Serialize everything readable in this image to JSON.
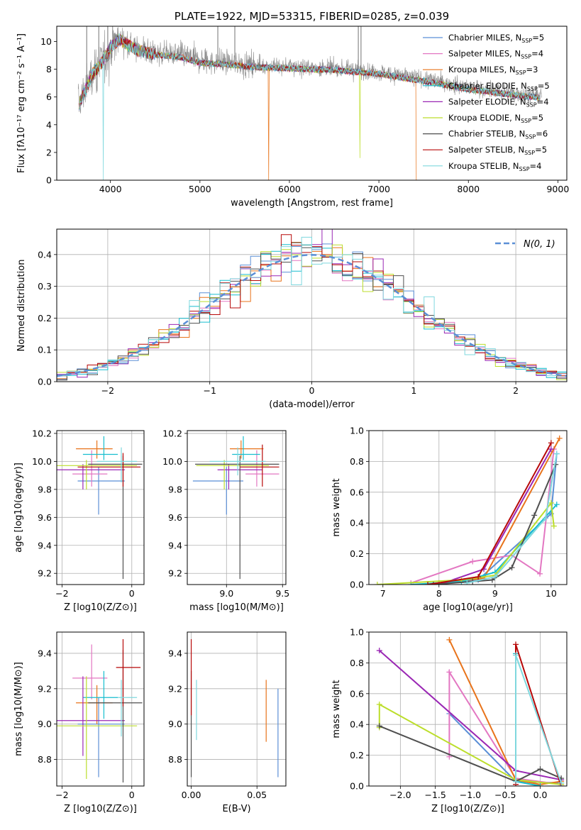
{
  "palette": [
    "#5b8fd6",
    "#e377c2",
    "#e8731a",
    "#17becf",
    "#9a27b4",
    "#bcde2b",
    "#4f4f4f",
    "#b70808",
    "#7fd8de"
  ],
  "chart_data": [
    {
      "id": "spectrum",
      "type": "line",
      "title": "PLATE=1922, MJD=53315, FIBERID=0285, z=0.039",
      "xlabel": "wavelength [Angstrom, rest frame]",
      "ylabel": "Flux [fλ10⁻¹⁷ erg cm⁻² s⁻¹ A⁻¹]",
      "xlim": [
        3400,
        9100
      ],
      "ylim": [
        0,
        11.1
      ],
      "xticks": [
        4000,
        5000,
        6000,
        7000,
        8000,
        9000
      ],
      "yticks": [
        0,
        2,
        4,
        6,
        8,
        10
      ],
      "grid": false,
      "legend_position": "upper right",
      "data_color": "#8a8a8a",
      "data_envelope": {
        "x": [
          3650,
          3800,
          3900,
          4000,
          4100,
          4300,
          4500,
          4800,
          5000,
          5300,
          5600,
          6000,
          6500,
          7000,
          7500,
          8000,
          8500,
          8800
        ],
        "y": [
          5.6,
          7.8,
          8.6,
          9.7,
          10.3,
          9.5,
          9.2,
          9.0,
          8.6,
          8.5,
          8.3,
          8.2,
          8.1,
          7.8,
          7.3,
          6.7,
          6.3,
          6.1
        ]
      },
      "series": [
        {
          "name": "Chabrier MILES, N_SSP=5",
          "label_main": "Chabrier MILES, N",
          "label_sub": "SSP",
          "label_tail": "=5"
        },
        {
          "name": "Salpeter MILES, N_SSP=4",
          "label_main": "Salpeter MILES, N",
          "label_sub": "SSP",
          "label_tail": "=4"
        },
        {
          "name": "Kroupa MILES, N_SSP=3",
          "label_main": "Kroupa MILES, N",
          "label_sub": "SSP",
          "label_tail": "=3"
        },
        {
          "name": "Chabrier ELODIE, N_SSP=5",
          "label_main": "Chabrier ELODIE, N",
          "label_sub": "SSP",
          "label_tail": "=5"
        },
        {
          "name": "Salpeter ELODIE, N_SSP=4",
          "label_main": "Salpeter ELODIE, N",
          "label_sub": "SSP",
          "label_tail": "=4"
        },
        {
          "name": "Kroupa ELODIE, N_SSP=5",
          "label_main": "Kroupa ELODIE, N",
          "label_sub": "SSP",
          "label_tail": "=5"
        },
        {
          "name": "Chabrier STELIB, N_SSP=6",
          "label_main": "Chabrier STELIB, N",
          "label_sub": "SSP",
          "label_tail": "=6"
        },
        {
          "name": "Salpeter STELIB, N_SSP=5",
          "label_main": "Salpeter STELIB, N",
          "label_sub": "SSP",
          "label_tail": "=5"
        },
        {
          "name": "Kroupa STELIB, N_SSP=4",
          "label_main": "Kroupa STELIB, N",
          "label_sub": "SSP",
          "label_tail": "=4"
        }
      ]
    },
    {
      "id": "residuals",
      "type": "line",
      "xlabel": "(data-model)/error",
      "ylabel": "Normed distribution",
      "xlim": [
        -2.5,
        2.5
      ],
      "ylim": [
        0,
        0.48
      ],
      "xticks": [
        -2,
        -1,
        0,
        1,
        2
      ],
      "yticks": [
        0.0,
        0.1,
        0.2,
        0.3,
        0.4
      ],
      "grid": true,
      "legend_position": "upper right",
      "normal_curve": {
        "name": "N(0,1)",
        "mean": 0,
        "sigma": 1,
        "color": "#5b8fd6",
        "dashed": true
      },
      "bin_width": 0.1,
      "histogram_note": "nine step histograms, one per model, scattered around the normal curve"
    },
    {
      "id": "age_vs_Z",
      "type": "scatter",
      "xlabel": "Z [log10(Z/Z⊙)]",
      "ylabel": "age  [log10(age/yr)]",
      "xlim": [
        -2.15,
        0.35
      ],
      "ylim": [
        9.12,
        10.22
      ],
      "xticks": [
        -2,
        0
      ],
      "yticks": [
        9.2,
        9.4,
        9.6,
        9.8,
        10.0,
        10.2
      ],
      "grid": true,
      "crosses": [
        {
          "x": -0.95,
          "y": 9.86,
          "xerr": [
            0.6,
            0.75
          ],
          "yerr": [
            0.24,
            0.1
          ]
        },
        {
          "x": -1.15,
          "y": 9.91,
          "xerr": [
            0.55,
            0.45
          ],
          "yerr": [
            0.09,
            0.17
          ]
        },
        {
          "x": -1.0,
          "y": 10.09,
          "xerr": [
            0.6,
            0.45
          ],
          "yerr": [
            0.07,
            0.06
          ]
        },
        {
          "x": -0.8,
          "y": 10.05,
          "xerr": [
            0.6,
            0.4
          ],
          "yerr": [
            0.04,
            0.13
          ]
        },
        {
          "x": -1.4,
          "y": 9.94,
          "xerr": [
            0.75,
            1.2
          ],
          "yerr": [
            0.14,
            0.04
          ]
        },
        {
          "x": -1.3,
          "y": 9.97,
          "xerr": [
            0.85,
            1.45
          ],
          "yerr": [
            0.17,
            0.04
          ]
        },
        {
          "x": -0.25,
          "y": 9.98,
          "xerr": [
            1.0,
            0.55
          ],
          "yerr": [
            0.82,
            0.06
          ]
        },
        {
          "x": -0.25,
          "y": 9.96,
          "xerr": [
            1.3,
            0.5
          ],
          "yerr": [
            0.14,
            0.1
          ]
        },
        {
          "x": -0.3,
          "y": 10.0,
          "xerr": [
            0.7,
            0.45
          ],
          "yerr": [
            0.15,
            0.1
          ]
        }
      ]
    },
    {
      "id": "age_vs_mass",
      "type": "scatter",
      "xlabel": "mass [log10(M/M⊙)]",
      "ylabel": "",
      "xlim": [
        8.65,
        9.53
      ],
      "ylim": [
        9.12,
        10.22
      ],
      "xticks": [
        9.0,
        9.5
      ],
      "yticks": [
        9.2,
        9.4,
        9.6,
        9.8,
        10.0,
        10.2
      ],
      "grid": true,
      "crosses": [
        {
          "x": 9.0,
          "y": 9.86,
          "xerr": [
            0.3,
            0.15
          ],
          "yerr": [
            0.24,
            0.1
          ]
        },
        {
          "x": 9.27,
          "y": 9.91,
          "xerr": [
            0.1,
            0.2
          ],
          "yerr": [
            0.09,
            0.17
          ]
        },
        {
          "x": 9.13,
          "y": 10.09,
          "xerr": [
            0.1,
            0.2
          ],
          "yerr": [
            0.07,
            0.06
          ]
        },
        {
          "x": 9.15,
          "y": 10.05,
          "xerr": [
            0.1,
            0.15
          ],
          "yerr": [
            0.04,
            0.13
          ]
        },
        {
          "x": 9.02,
          "y": 9.94,
          "xerr": [
            0.1,
            0.3
          ],
          "yerr": [
            0.14,
            0.04
          ]
        },
        {
          "x": 8.98,
          "y": 9.97,
          "xerr": [
            0.25,
            0.4
          ],
          "yerr": [
            0.17,
            0.04
          ]
        },
        {
          "x": 9.12,
          "y": 9.98,
          "xerr": [
            0.4,
            0.35
          ],
          "yerr": [
            0.82,
            0.06
          ]
        },
        {
          "x": 9.32,
          "y": 9.96,
          "xerr": [
            0.2,
            0.15
          ],
          "yerr": [
            0.14,
            0.16
          ]
        },
        {
          "x": 9.1,
          "y": 10.0,
          "xerr": [
            0.25,
            0.25
          ],
          "yerr": [
            0.1,
            0.1
          ]
        }
      ]
    },
    {
      "id": "massweight_vs_age",
      "type": "line",
      "xlabel": "age  [log10(age/yr)]",
      "ylabel": "mass weight",
      "xlim": [
        6.75,
        10.28
      ],
      "ylim": [
        0,
        1.0
      ],
      "xticks": [
        7,
        8,
        9,
        10
      ],
      "yticks": [
        0.0,
        0.2,
        0.4,
        0.6,
        0.8,
        1.0
      ],
      "grid": true,
      "series": [
        {
          "x": [
            7.9,
            8.7,
            10.0,
            10.1
          ],
          "y": [
            0.0,
            0.03,
            0.46,
            0.85
          ]
        },
        {
          "x": [
            7.5,
            8.6,
            9.3,
            9.8,
            10.05
          ],
          "y": [
            0.01,
            0.15,
            0.19,
            0.07,
            0.88
          ]
        },
        {
          "x": [
            8.0,
            8.8,
            10.15
          ],
          "y": [
            0.01,
            0.04,
            0.95
          ]
        },
        {
          "x": [
            7.5,
            8.4,
            9.0,
            10.1
          ],
          "y": [
            0.0,
            0.02,
            0.08,
            0.52
          ]
        },
        {
          "x": [
            8.0,
            8.8,
            10.0
          ],
          "y": [
            0.0,
            0.1,
            0.88
          ]
        },
        {
          "x": [
            6.9,
            8.4,
            9.0,
            10.0,
            10.05
          ],
          "y": [
            0.0,
            0.03,
            0.06,
            0.53,
            0.38
          ]
        },
        {
          "x": [
            7.9,
            8.6,
            8.95,
            9.3,
            9.7,
            10.08
          ],
          "y": [
            0.0,
            0.02,
            0.03,
            0.11,
            0.45,
            0.78
          ]
        },
        {
          "x": [
            7.8,
            8.7,
            10.0
          ],
          "y": [
            0.0,
            0.05,
            0.92
          ]
        },
        {
          "x": [
            8.5,
            9.0,
            9.9,
            10.1
          ],
          "y": [
            0.01,
            0.05,
            0.43,
            0.85
          ]
        }
      ]
    },
    {
      "id": "mass_vs_Z",
      "type": "scatter",
      "xlabel": "Z [log10(Z/Z⊙)]",
      "ylabel": "mass [log10(M/M⊙)]",
      "xlim": [
        -2.15,
        0.35
      ],
      "ylim": [
        8.65,
        9.52
      ],
      "xticks": [
        -2,
        0
      ],
      "yticks": [
        8.8,
        9.0,
        9.2,
        9.4
      ],
      "grid": true,
      "crosses": [
        {
          "x": -0.95,
          "y": 9.0,
          "xerr": [
            0.6,
            0.75
          ],
          "yerr": [
            0.3,
            0.15
          ]
        },
        {
          "x": -1.15,
          "y": 9.26,
          "xerr": [
            0.55,
            0.45
          ],
          "yerr": [
            0.12,
            0.19
          ]
        },
        {
          "x": -1.0,
          "y": 9.12,
          "xerr": [
            0.6,
            0.45
          ],
          "yerr": [
            0.12,
            0.1
          ]
        },
        {
          "x": -0.8,
          "y": 9.15,
          "xerr": [
            0.6,
            0.4
          ],
          "yerr": [
            0.12,
            0.15
          ]
        },
        {
          "x": -1.4,
          "y": 9.02,
          "xerr": [
            0.75,
            1.2
          ],
          "yerr": [
            0.2,
            0.25
          ]
        },
        {
          "x": -1.3,
          "y": 8.99,
          "xerr": [
            0.85,
            1.45
          ],
          "yerr": [
            0.3,
            0.28
          ]
        },
        {
          "x": -0.25,
          "y": 9.12,
          "xerr": [
            1.0,
            0.55
          ],
          "yerr": [
            0.45,
            0.3
          ]
        },
        {
          "x": -0.25,
          "y": 9.32,
          "xerr": [
            0.2,
            0.5
          ],
          "yerr": [
            0.22,
            0.16
          ]
        },
        {
          "x": -0.3,
          "y": 9.15,
          "xerr": [
            0.1,
            0.45
          ],
          "yerr": [
            0.22,
            0.1
          ]
        }
      ]
    },
    {
      "id": "mass_vs_EBV",
      "type": "scatter",
      "xlabel": "E(B-V)",
      "ylabel": "",
      "xlim": [
        -0.003,
        0.072
      ],
      "ylim": [
        8.65,
        9.52
      ],
      "xticks": [
        0.0,
        0.05
      ],
      "xtick_labels": [
        "0.00",
        "0.05"
      ],
      "yticks": [
        8.8,
        9.0,
        9.2,
        9.4
      ],
      "grid": true,
      "crosses": [
        {
          "x": 0.066,
          "y": 8.95,
          "xerr": [
            0,
            0
          ],
          "yerr": [
            0.25,
            0.25
          ]
        },
        {
          "x": 0.057,
          "y": 9.07,
          "xerr": [
            0,
            0
          ],
          "yerr": [
            0.17,
            0.18
          ]
        },
        {
          "x": 0.004,
          "y": 9.08,
          "xerr": [
            0,
            0
          ],
          "yerr": [
            0.17,
            0.17
          ]
        },
        {
          "x": 0.0,
          "y": 9.0,
          "xerr": [
            0,
            0
          ],
          "yerr": [
            0.3,
            0.3
          ]
        },
        {
          "x": 0.0,
          "y": 9.25,
          "xerr": [
            0,
            0
          ],
          "yerr": [
            0.2,
            0.23
          ]
        }
      ]
    },
    {
      "id": "massweight_vs_Z",
      "type": "line",
      "xlabel": "Z [log10(Z/Z⊙)]",
      "ylabel": "mass weight",
      "xlim": [
        -2.45,
        0.38
      ],
      "ylim": [
        0,
        1.0
      ],
      "xticks": [
        -2.0,
        -1.5,
        -1.0,
        -0.5,
        0.0
      ],
      "xtick_labels": [
        "−2.0",
        "−1.5",
        "−1.0",
        "−0.5",
        "0.0"
      ],
      "yticks": [
        0.0,
        0.2,
        0.4,
        0.6,
        0.8,
        1.0
      ],
      "grid": true,
      "series": [
        {
          "x": [
            -1.3,
            -0.35,
            0.3
          ],
          "y": [
            0.47,
            0.03,
            0.02
          ]
        },
        {
          "x": [
            -1.3,
            -1.3,
            -0.35,
            0.3
          ],
          "y": [
            0.19,
            0.74,
            0.05,
            0.01
          ]
        },
        {
          "x": [
            -1.3,
            -0.35,
            0.0,
            0.3
          ],
          "y": [
            0.95,
            0.04,
            0.01,
            0.03
          ]
        },
        {
          "x": [
            -0.35,
            -0.35,
            0.0
          ],
          "y": [
            0.86,
            0.03,
            0.0
          ]
        },
        {
          "x": [
            -2.3,
            -0.35,
            0.3
          ],
          "y": [
            0.88,
            0.1,
            0.04
          ]
        },
        {
          "x": [
            -2.3,
            -2.3,
            -0.35,
            0.3
          ],
          "y": [
            0.38,
            0.53,
            0.04,
            0.01
          ]
        },
        {
          "x": [
            -2.3,
            -0.35,
            0.0,
            0.3
          ],
          "y": [
            0.39,
            0.03,
            0.11,
            0.05
          ]
        },
        {
          "x": [
            -0.35,
            -0.35,
            0.3
          ],
          "y": [
            0.01,
            0.92,
            0.0
          ]
        },
        {
          "x": [
            -0.35,
            -0.35,
            0.3
          ],
          "y": [
            0.03,
            0.85,
            0.02
          ]
        }
      ]
    }
  ]
}
